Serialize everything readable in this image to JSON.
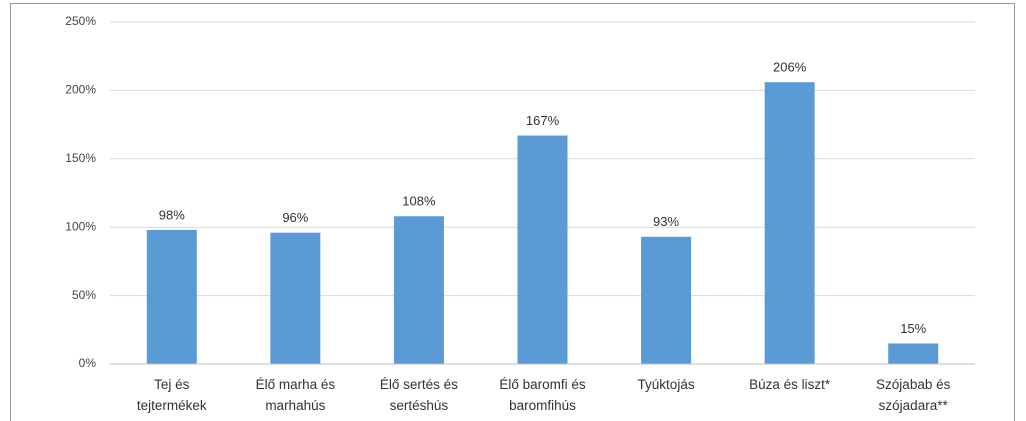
{
  "chart_data": {
    "type": "bar",
    "categories": [
      "Tej és tejtermékek",
      "Élő marha és marhahús",
      "Élő sertés és sertéshús",
      "Élő baromfi és baromfihús",
      "Tyúktojás",
      "Búza és liszt*",
      "Szójabab és szójadara**"
    ],
    "values": [
      98,
      96,
      108,
      167,
      93,
      206,
      15
    ],
    "value_labels": [
      "98%",
      "96%",
      "108%",
      "167%",
      "93%",
      "206%",
      "15%"
    ],
    "color": "#5b9bd5",
    "ylim": [
      0,
      250
    ],
    "yticks": [
      {
        "value": 0,
        "label": "0%"
      },
      {
        "value": 50,
        "label": "50%"
      },
      {
        "value": 100,
        "label": "100%"
      },
      {
        "value": 150,
        "label": "150%"
      },
      {
        "value": 200,
        "label": "200%"
      },
      {
        "value": 250,
        "label": "250%"
      }
    ],
    "grid": true
  }
}
